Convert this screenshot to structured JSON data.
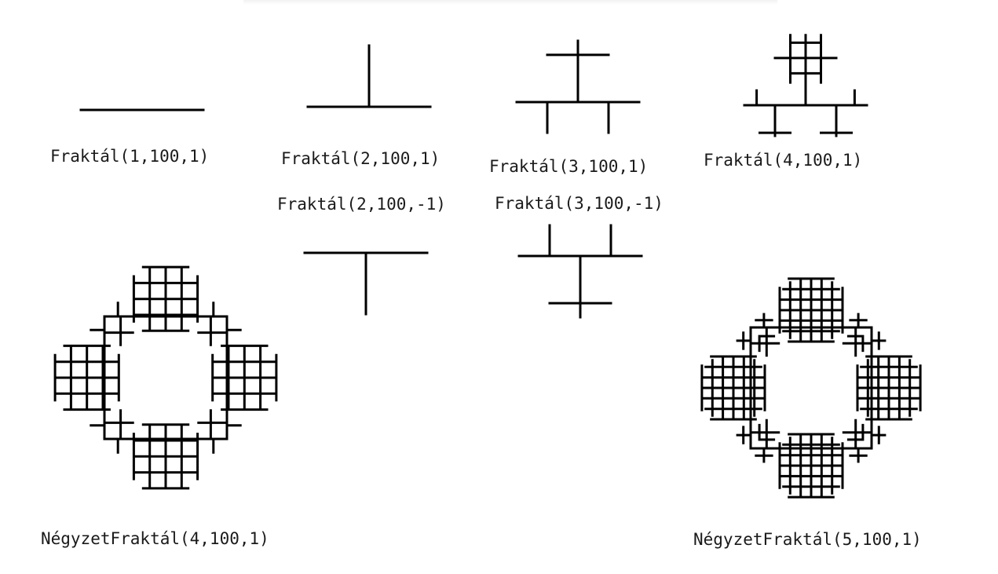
{
  "figures": [
    {
      "id": "f1",
      "kind": "line",
      "level": 1,
      "size": 100,
      "sign": 1,
      "label": "Fraktál(1,100,1)"
    },
    {
      "id": "f2",
      "kind": "line",
      "level": 2,
      "size": 100,
      "sign": 1,
      "label": "Fraktál(2,100,1)"
    },
    {
      "id": "f3",
      "kind": "line",
      "level": 3,
      "size": 100,
      "sign": 1,
      "label": "Fraktál(3,100,1)"
    },
    {
      "id": "f4",
      "kind": "line",
      "level": 4,
      "size": 100,
      "sign": 1,
      "label": "Fraktál(4,100,1)"
    },
    {
      "id": "f2n",
      "kind": "line",
      "level": 2,
      "size": 100,
      "sign": -1,
      "label": "Fraktál(2,100,-1)"
    },
    {
      "id": "f3n",
      "kind": "line",
      "level": 3,
      "size": 100,
      "sign": -1,
      "label": "Fraktál(3,100,-1)"
    },
    {
      "id": "sq4",
      "kind": "square",
      "level": 4,
      "size": 100,
      "sign": 1,
      "label": "NégyzetFraktál(4,100,1)"
    },
    {
      "id": "sq5",
      "kind": "square",
      "level": 5,
      "size": 100,
      "sign": 1,
      "label": "NégyzetFraktál(5,100,1)"
    }
  ],
  "colors": {
    "stroke": "#000000",
    "text": "#1a1a1a",
    "background": "#ffffff"
  }
}
